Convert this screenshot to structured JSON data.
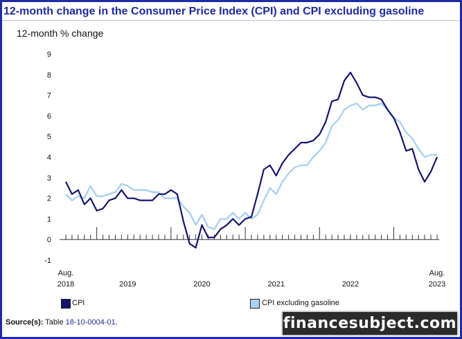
{
  "title": "12-month change in the Consumer Price Index (CPI) and CPI excluding gasoline",
  "ylabel": "12-month % change",
  "legend": [
    {
      "label": "CPI",
      "color": "#14146e"
    },
    {
      "label": "CPI excluding gasoline",
      "color": "#a9d1f2"
    }
  ],
  "source": {
    "label": "Source(s):",
    "text": "Table",
    "link": "18-10-0004-01",
    "suffix": "."
  },
  "watermark": "financesubject.com",
  "chart_data": {
    "type": "line",
    "ylim": [
      -1,
      9
    ],
    "yticks": [
      "-1",
      "0",
      "1",
      "2",
      "3",
      "4",
      "5",
      "6",
      "7",
      "8",
      "9"
    ],
    "x_start": "Aug. 2018",
    "x_end": "Aug. 2023",
    "x_tick_labels": [
      {
        "month_index": 0,
        "line1": "Aug.",
        "line2": "2018"
      },
      {
        "month_index": 10,
        "line1": "",
        "line2": "2019"
      },
      {
        "month_index": 22,
        "line1": "",
        "line2": "2020"
      },
      {
        "month_index": 34,
        "line1": "",
        "line2": "2021"
      },
      {
        "month_index": 46,
        "line1": "",
        "line2": "2022"
      },
      {
        "month_index": 60,
        "line1": "Aug.",
        "line2": "2023"
      }
    ],
    "series": [
      {
        "name": "CPI",
        "color": "#14146e",
        "values": [
          2.8,
          2.2,
          2.4,
          1.7,
          2.0,
          1.4,
          1.5,
          1.9,
          2.0,
          2.4,
          2.0,
          2.0,
          1.9,
          1.9,
          1.9,
          2.2,
          2.2,
          2.4,
          2.2,
          0.9,
          -0.2,
          -0.4,
          0.7,
          0.1,
          0.1,
          0.5,
          0.7,
          1.0,
          0.7,
          1.0,
          1.1,
          2.2,
          3.4,
          3.6,
          3.1,
          3.7,
          4.1,
          4.4,
          4.7,
          4.7,
          4.8,
          5.1,
          5.7,
          6.7,
          6.8,
          7.7,
          8.1,
          7.6,
          7.0,
          6.9,
          6.9,
          6.8,
          6.3,
          5.9,
          5.2,
          4.3,
          4.4,
          3.4,
          2.8,
          3.3,
          4.0
        ]
      },
      {
        "name": "CPI excluding gasoline",
        "color": "#a9d1f2",
        "values": [
          2.2,
          1.9,
          2.1,
          2.0,
          2.6,
          2.1,
          2.1,
          2.2,
          2.3,
          2.7,
          2.6,
          2.4,
          2.4,
          2.4,
          2.3,
          2.3,
          2.0,
          2.0,
          2.0,
          1.6,
          1.3,
          0.7,
          1.2,
          0.6,
          0.5,
          1.0,
          1.0,
          1.3,
          1.0,
          1.3,
          1.0,
          1.2,
          1.9,
          2.5,
          2.2,
          2.8,
          3.2,
          3.5,
          3.6,
          3.6,
          4.0,
          4.3,
          4.7,
          5.5,
          5.8,
          6.3,
          6.5,
          6.6,
          6.3,
          6.5,
          6.5,
          6.6,
          6.3,
          5.9,
          5.7,
          5.2,
          4.9,
          4.4,
          4.0,
          4.1,
          4.1
        ]
      }
    ],
    "grid": false,
    "legend_position": "bottom"
  }
}
